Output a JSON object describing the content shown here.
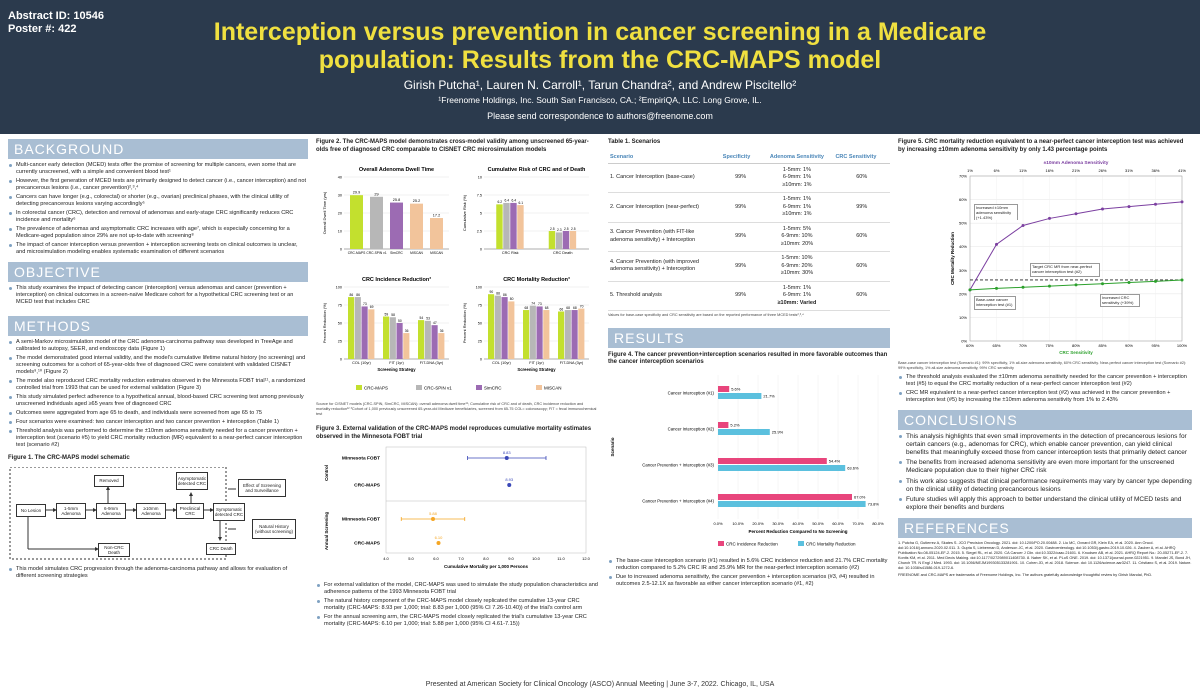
{
  "header": {
    "abstract_id": "Abstract ID: 10546",
    "poster": "Poster #: 422",
    "title": "Interception versus prevention in cancer screening in a Medicare population: Results from the CRC-MAPS model",
    "authors": "Girish Putcha¹, Lauren N. Carroll¹, Tarun Chandra², and Andrew Piscitello²",
    "affiliations": "¹Freenome Holdings, Inc. South San Francisco, CA.; ²EmpiriQA, LLC. Long Grove, IL.",
    "correspondence": "Please send correspondence to authors@freenome.com"
  },
  "background": {
    "heading": "BACKGROUND",
    "items": [
      "Multi-cancer early detection (MCED) tests offer the promise of screening for multiple cancers, even some that are currently unscreened, with a simple and convenient blood test¹",
      "However, the first generation of MCED tests are primarily designed to detect cancer (i.e., cancer interception) and not precancerous lesions (i.e., cancer prevention)²,³,⁴",
      "Cancers can have longer (e.g., colorectal) or shorter (e.g., ovarian) preclinical phases, with the clinical utility of detecting precancerous lesions varying accordingly⁵",
      "In colorectal cancer (CRC), detection and removal of adenomas and early-stage CRC significantly reduces CRC incidence and mortality⁶",
      "The prevalence of adenomas and asymptomatic CRC increases with age⁷, which is especially concerning for a Medicare-aged population since 29% are not up-to-date with screening⁸",
      "The impact of cancer interception versus prevention + interception screening tests on clinical outcomes is unclear, and microsimulation modeling enables systematic examination of different scenarios"
    ]
  },
  "objective": {
    "heading": "OBJECTIVE",
    "items": [
      "This study examines the impact of detecting cancer (interception) versus adenomas and cancer (prevention + interception) on clinical outcomes in a screen-naïve Medicare cohort for a hypothetical CRC screening test or an MCED test that includes CRC"
    ]
  },
  "methods": {
    "heading": "METHODS",
    "items": [
      "A semi-Markov microsimulation model of the CRC adenoma-carcinoma pathway was developed in TreeAge and calibrated to autopsy, SEER, and endoscopy data (Figure 1)",
      "The model demonstrated good internal validity, and the model's cumulative lifetime natural history (no screening) and screening outcomes for a cohort of 65-year-olds free of diagnosed CRC were consistent with validated CISNET models⁹,¹⁰ (Figure 2)",
      "The model also reproduced CRC mortality reduction estimates observed in the Minnesota FOBT trial¹¹, a randomized controlled trial from 1993 that can be used for external validation (Figure 3)",
      "This study simulated perfect adherence to a hypothetical annual, blood-based CRC screening test among previously unscreened individuals aged ≥65 years free of diagnosed CRC",
      "Outcomes were aggregated from age 65 to death, and individuals were screened from age 65 to 75",
      "Four scenarios were examined: two cancer interception and two cancer prevention + interception (Table 1)",
      "Threshold analysis was performed to determine the ±10mm adenoma sensitivity needed for a cancer prevention + interception test (scenario #5) to yield CRC mortality reduction (MR) equivalent to a near-perfect cancer interception test (scenario #2)"
    ]
  },
  "fig1": {
    "title": "Figure 1. The CRC-MAPS model schematic",
    "boxes": {
      "removed": "Removed",
      "asym": "Asymptomatic detected CRC",
      "effect": "Effect of Screening and Surveillance",
      "nolesion": "No Lesion",
      "a1": "1-5mm Adenoma",
      "a2": "6-9mm Adenoma",
      "a3": "≥10mm Adenoma",
      "pre": "Preclinical CRC",
      "sym": "Symptomatic detected CRC",
      "nat": "Natural History (without screening)",
      "noncrc": "Non-CRC Death",
      "crcdeath": "CRC Death"
    },
    "caption": "This model simulates CRC progression through the adenoma-carcinoma pathway and allows for evaluation of different screening strategies"
  },
  "fig2": {
    "title": "Figure 2. The CRC-MAPS model demonstrates cross-model validity among unscreened 65-year-olds free of diagnosed CRC comparable to CISNET CRC microsimulation models",
    "p1": {
      "title": "Overall Adenoma Dwell Time",
      "ylabel": "Overall Dwell Time (yrs)"
    },
    "p2": {
      "title": "Cumulative Risk of CRC and of Death",
      "ylabel": "Cumulative Risk (%)"
    },
    "p3": {
      "title": "CRC Incidence Reduction³",
      "ylabel": "Percent Reduction (%)",
      "xlabel": "Screening Strategy"
    },
    "p4": {
      "title": "CRC Mortality Reduction³",
      "ylabel": "Percent Reduction (%)",
      "xlabel": "Screening Strategy"
    },
    "legend": [
      "CRC-MAPS",
      "CRC-SPIN v1",
      "SimCRC",
      "MISCAN"
    ],
    "note": "Source for CISNET models (CRC-SPIN, SimCRC, MISCAN): overall adenoma dwell time¹¹; Cumulative risk of CRC and of death, CRC incidence reduction and mortality reduction¹² ³Cohort of 1,000 previously unscreened 65-year-old Medicare beneficiaries, screened from 65-75 COL= colonoscopy; FIT = fecal immunochemical test"
  },
  "fig3": {
    "title": "Figure 3. External validation of the CRC-MAPS model reproduces cumulative mortality estimates observed in the Minnesota FOBT trial",
    "group1": "Control",
    "group2": "Annual Screening",
    "rows": [
      "Minnesota FOBT",
      "CRC-MAPS",
      "Minnesota FOBT",
      "CRC-MAPS"
    ],
    "xlabel": "Cumulative Mortality per 1,000 Persons"
  },
  "fig3bullets": [
    "For external validation of the model, CRC-MAPS was used to simulate the study population characteristics and adherence patterns of the 1993 Minnesota FOBT trial",
    "The natural history component of the CRC-MAPS model closely replicated the cumulative 13-year CRC mortality (CRC-MAPS: 8.93 per 1,000; trial: 8.83 per 1,000 (95% CI 7.26-10.40)) of the trial's control arm",
    "For the annual screening arm, the CRC-MAPS model closely replicated the trial's cumulative 13-year CRC mortality (CRC-MAPS: 6.10 per 1,000; trial: 5.88 per 1,000 (95% CI 4.61-7.15))"
  ],
  "table1": {
    "title": "Table 1. Scenarios",
    "headers": [
      "Scenario",
      "Specificity",
      "Adenoma Sensitivity",
      "CRC Sensitivity"
    ],
    "rows": [
      {
        "name": "1.  Cancer Interception (base-case)",
        "spec": "99%",
        "aden": [
          "1-5mm: 1%",
          "6-9mm: 1%",
          "≥10mm: 1%"
        ],
        "crc": "60%"
      },
      {
        "name": "2.  Cancer Interception (near-perfect)",
        "spec": "99%",
        "aden": [
          "1-5mm: 1%",
          "6-9mm: 1%",
          "≥10mm: 1%"
        ],
        "crc": "99%"
      },
      {
        "name": "3.  Cancer Prevention (with FIT-like adenoma sensitivity) + Interception",
        "spec": "99%",
        "aden": [
          "1-5mm: 5%",
          "6-9mm: 10%",
          "≥10mm: 20%"
        ],
        "crc": "60%"
      },
      {
        "name": "4.  Cancer Prevention (with improved adenoma sensitivity) + Interception",
        "spec": "99%",
        "aden": [
          "1-5mm: 10%",
          "6-9mm: 20%",
          "≥10mm: 30%"
        ],
        "crc": "60%"
      },
      {
        "name": "5.  Threshold analysis",
        "spec": "99%",
        "aden": [
          "1-5mm: 1%",
          "6-9mm: 1%",
          "≥10mm: Varied"
        ],
        "crc": "60%"
      }
    ],
    "note": "Values for base-case specificity and CRC sensitivity are based on the reported performance of three MCED tests²,³,⁴"
  },
  "results": {
    "heading": "RESULTS",
    "fig4title": "Figure 4. The cancer prevention+interception scenarios resulted in more favorable outcomes than the cancer interception scenarios",
    "ylabel": "Scenario",
    "xlabel": "Percent Reduction Compared to No Screening",
    "legend": [
      "CRC Incidence Reduction",
      "CRC Mortality Reduction"
    ],
    "bullets": [
      "The base-case interception scenario (#1) resulted in 5.6% CRC incidence reduction and 21.7% CRC mortality reduction compared to 5.2% CRC IR and 25.9% MR for the near-perfect interception scenario (#2)",
      "Due to increased adenoma sensitivity, the cancer prevention + interception scenarios (#3, #4) resulted in outcomes 2.5-12.1X as favorable as either cancer interception scenario (#1, #2)"
    ]
  },
  "fig5": {
    "title": "Figure 5. CRC mortality reduction equivalent to a near-perfect cancer interception test was achieved by increasing ±10mm adenoma sensitivity by only 1.43 percentage points",
    "toplabel": "±10mm Adenoma Sensitivity",
    "xlabel": "CRC Sensitivity",
    "ylabel": "CRC Mortality Reduction",
    "ann1": "Increased ±10mm adenoma sensitivity (+1.43%)",
    "ann2": "Target CRC MR from near-perfect cancer interception test (#2)",
    "ann3": "Base-case cancer interception test (#1)",
    "ann4": "Increased CRC sensitivity (+39%)",
    "note": "Base-case cancer interception test (Scenario #1): 99% specificity, 1% all-size adenoma sensitivity, 60% CRC sensitivity. Near-perfect cancer interception test (Scenario #2): 99% specificity, 1% all-size adenoma sensitivity, 99% CRC sensitivity",
    "bullets": [
      "The threshold analysis evaluated the ±10mm adenoma sensitivity needed for the cancer prevention + interception test (#5) to equal the CRC mortality reduction of a near-perfect cancer interception test (#2)",
      "CRC MR equivalent to a near-perfect cancer interception test (#2) was achieved in the cancer prevention + interception test (#5) by increasing the ±10mm adenoma sensitivity from 1% to 2.43%"
    ]
  },
  "conclusions": {
    "heading": "CONCLUSIONS",
    "items": [
      "This analysis highlights that even small improvements in the detection of precancerous lesions for certain cancers (e.g., adenomas for CRC), which enable cancer prevention, can yield clinical benefits that meaningfully exceed those from cancer interception tests that primarily detect cancer",
      "The benefits from increased adenoma sensitivity are even more important for the unscreened Medicare population due to their higher CRC risk",
      "This work also suggests that clinical performance requirements may vary by cancer type depending on the clinical utility of detecting precancerous lesions",
      "Future studies will apply this approach to better understand the clinical utility of MCED tests and explore their benefits and burdens"
    ]
  },
  "references": {
    "heading": "REFERENCES",
    "text": "1. Putcha G, Gutierrez A, Skates S. JCO Precision Oncology. 2021. doi: 10.1200/PO.20.00488. 2. Liu MC, Oxnard GR, Klein EA, et al. 2020. Ann Oncol. doi:10.1016/j.annonc.2020.02.011. 3. Gupta S, Lieberman D, Anderson JC, et al. 2020. Gastroenterology. doi:10.1053/j.gastro.2019.10.026. 4. Zauber A, et al. AHRQ Publication No.08-05124-EF-2. 2015. 5. Siegel RL, et al. 2020. CA Cancer J Clin. doi:10.3322/caac.21601. 6. Knudsen AB, et al. 2021. AHRQ Report No.: 20-05271-EF-2. 7. Kontis KM, et al. 2011. Med Decis Making. doi:10.1177/0272989X11408730. 8. Naber SK, et al. PLoS ONE. 2019. doi: 10.1371/journal.pone.0221951. 9. Mandel JS, Bond JH, Church TR. N Engl J Med. 1993. doi: 10.1056/NEJM199305133281901. 10. Cohen JD, et al. 2018. Science. doi: 10.1126/science.aar3247. 11. Cristiano S, et al. 2019. Nature. doi: 10.1038/s41586-019-1272-6.",
    "trademark": "FREENOME and CRC-MAPS are trademarks of Freenome Holdings, Inc. The authors gratefully acknowledge thoughtful review by Girish Mandal, PhD."
  },
  "footer": "Presented at American Society for Clinical Oncology (ASCO) Annual Meeting | June 3-7, 2022. Chicago, IL, USA",
  "chart_data": [
    {
      "type": "bar",
      "title": "Overall Adenoma Dwell Time",
      "ylabel": "Overall Dwell Time (yrs)",
      "ylim": [
        0,
        40
      ],
      "categories": [
        "CRC-MAPS",
        "CRC-SPIN v1",
        "SimCRC",
        "MISCAN"
      ],
      "values": [
        29.9,
        29.0,
        25.8,
        25.2
      ],
      "extra": {
        "label": "17.2",
        "value": 17.2
      }
    },
    {
      "type": "bar",
      "title": "Cumulative Risk of CRC and of Death",
      "ylabel": "Cumulative Risk (%)",
      "ylim": [
        0,
        10
      ],
      "categories": [
        "CRC Risk",
        "CRC Death"
      ],
      "series": [
        {
          "name": "CRC-MAPS",
          "values": [
            6.2,
            2.5
          ]
        },
        {
          "name": "CRC-SPIN v1",
          "values": [
            6.4,
            2.3
          ]
        },
        {
          "name": "SimCRC",
          "values": [
            6.4,
            2.5
          ]
        },
        {
          "name": "MISCAN",
          "values": [
            6.1,
            2.5
          ]
        }
      ]
    },
    {
      "type": "bar",
      "title": "CRC Incidence Reduction³",
      "ylabel": "Percent Reduction (%)",
      "xlabel": "Screening Strategy",
      "ylim": [
        0,
        100
      ],
      "categories": [
        "COL (10yr)",
        "FIT (1yr)",
        "FIT-DNA (3yr)"
      ],
      "series": [
        {
          "name": "CRC-MAPS",
          "values": [
            86,
            59,
            54
          ]
        },
        {
          "name": "CRC-SPIN v1",
          "values": [
            86,
            58,
            53
          ]
        },
        {
          "name": "SimCRC",
          "values": [
            73,
            50,
            47
          ]
        },
        {
          "name": "MISCAN",
          "values": [
            69,
            36,
            36
          ]
        }
      ]
    },
    {
      "type": "bar",
      "title": "CRC Mortality Reduction³",
      "ylabel": "Percent Reduction (%)",
      "xlabel": "Screening Strategy",
      "ylim": [
        0,
        100
      ],
      "categories": [
        "COL (10yr)",
        "FIT (1yr)",
        "FIT-DNA (3yr)"
      ],
      "series": [
        {
          "name": "CRC-MAPS",
          "values": [
            90,
            68,
            66
          ]
        },
        {
          "name": "CRC-SPIN v1",
          "values": [
            88,
            74,
            68
          ]
        },
        {
          "name": "SimCRC",
          "values": [
            86,
            73,
            68
          ]
        },
        {
          "name": "MISCAN",
          "values": [
            80,
            68,
            70
          ]
        }
      ]
    },
    {
      "type": "scatter",
      "title": "Figure 3",
      "xlabel": "Cumulative Mortality per 1,000 Persons",
      "xlim": [
        4,
        12
      ],
      "categories": [
        "Minnesota FOBT",
        "CRC-MAPS",
        "Minnesota FOBT",
        "CRC-MAPS"
      ],
      "values": [
        8.83,
        8.93,
        5.88,
        6.1
      ],
      "labels": [
        "8.83",
        "8.93",
        "5.88",
        "6.10"
      ],
      "ci": [
        [
          7.26,
          10.4
        ],
        null,
        [
          4.61,
          7.15
        ],
        null
      ],
      "colors": [
        "#3a48b8",
        "#3a48b8",
        "#f5a623",
        "#f5a623"
      ]
    },
    {
      "type": "bar",
      "orientation": "horizontal",
      "title": "Figure 4",
      "xlim": [
        0,
        80
      ],
      "categories": [
        "Cancer Interception (#1)",
        "Cancer Interception (#2)",
        "Cancer Prevention + Interception (#3)",
        "Cancer Prevention + Interception (#4)"
      ],
      "series": [
        {
          "name": "CRC Incidence Reduction",
          "values": [
            5.6,
            5.2,
            54.4,
            67.0
          ],
          "labels": [
            "5.6%",
            "5.2%",
            "54.4%",
            "67.0%"
          ],
          "color": "#e8457c"
        },
        {
          "name": "CRC Mortality Reduction",
          "values": [
            21.7,
            25.9,
            63.6,
            73.8
          ],
          "labels": [
            "21.7%",
            "25.9%",
            "63.6%",
            "73.8%"
          ],
          "color": "#5bc0de"
        }
      ]
    },
    {
      "type": "line",
      "title": "Figure 5",
      "xlabel": "CRC Sensitivity",
      "ylabel": "CRC Mortality Reduction",
      "ylim": [
        0,
        70
      ],
      "yticks": [
        0,
        10,
        20,
        30,
        40,
        50,
        60,
        70
      ],
      "x": [
        60,
        65,
        70,
        75,
        80,
        85,
        90,
        95,
        100
      ],
      "xticks": [
        "60%",
        "65%",
        "70%",
        "75%",
        "80%",
        "85%",
        "90%",
        "95%",
        "100%"
      ],
      "toplabels": [
        "1%",
        "6%",
        "11%",
        "16%",
        "21%",
        "26%",
        "31%",
        "36%",
        "41%"
      ],
      "series": [
        {
          "name": "purple",
          "values": [
            21.7,
            41,
            49,
            52,
            54,
            56,
            57,
            58,
            59
          ],
          "color": "#7b3fa0"
        },
        {
          "name": "green",
          "values": [
            21.7,
            22.3,
            22.8,
            23.3,
            23.8,
            24.3,
            24.8,
            25.3,
            25.9
          ],
          "color": "#2ca02c"
        }
      ],
      "target": 25.9
    }
  ]
}
